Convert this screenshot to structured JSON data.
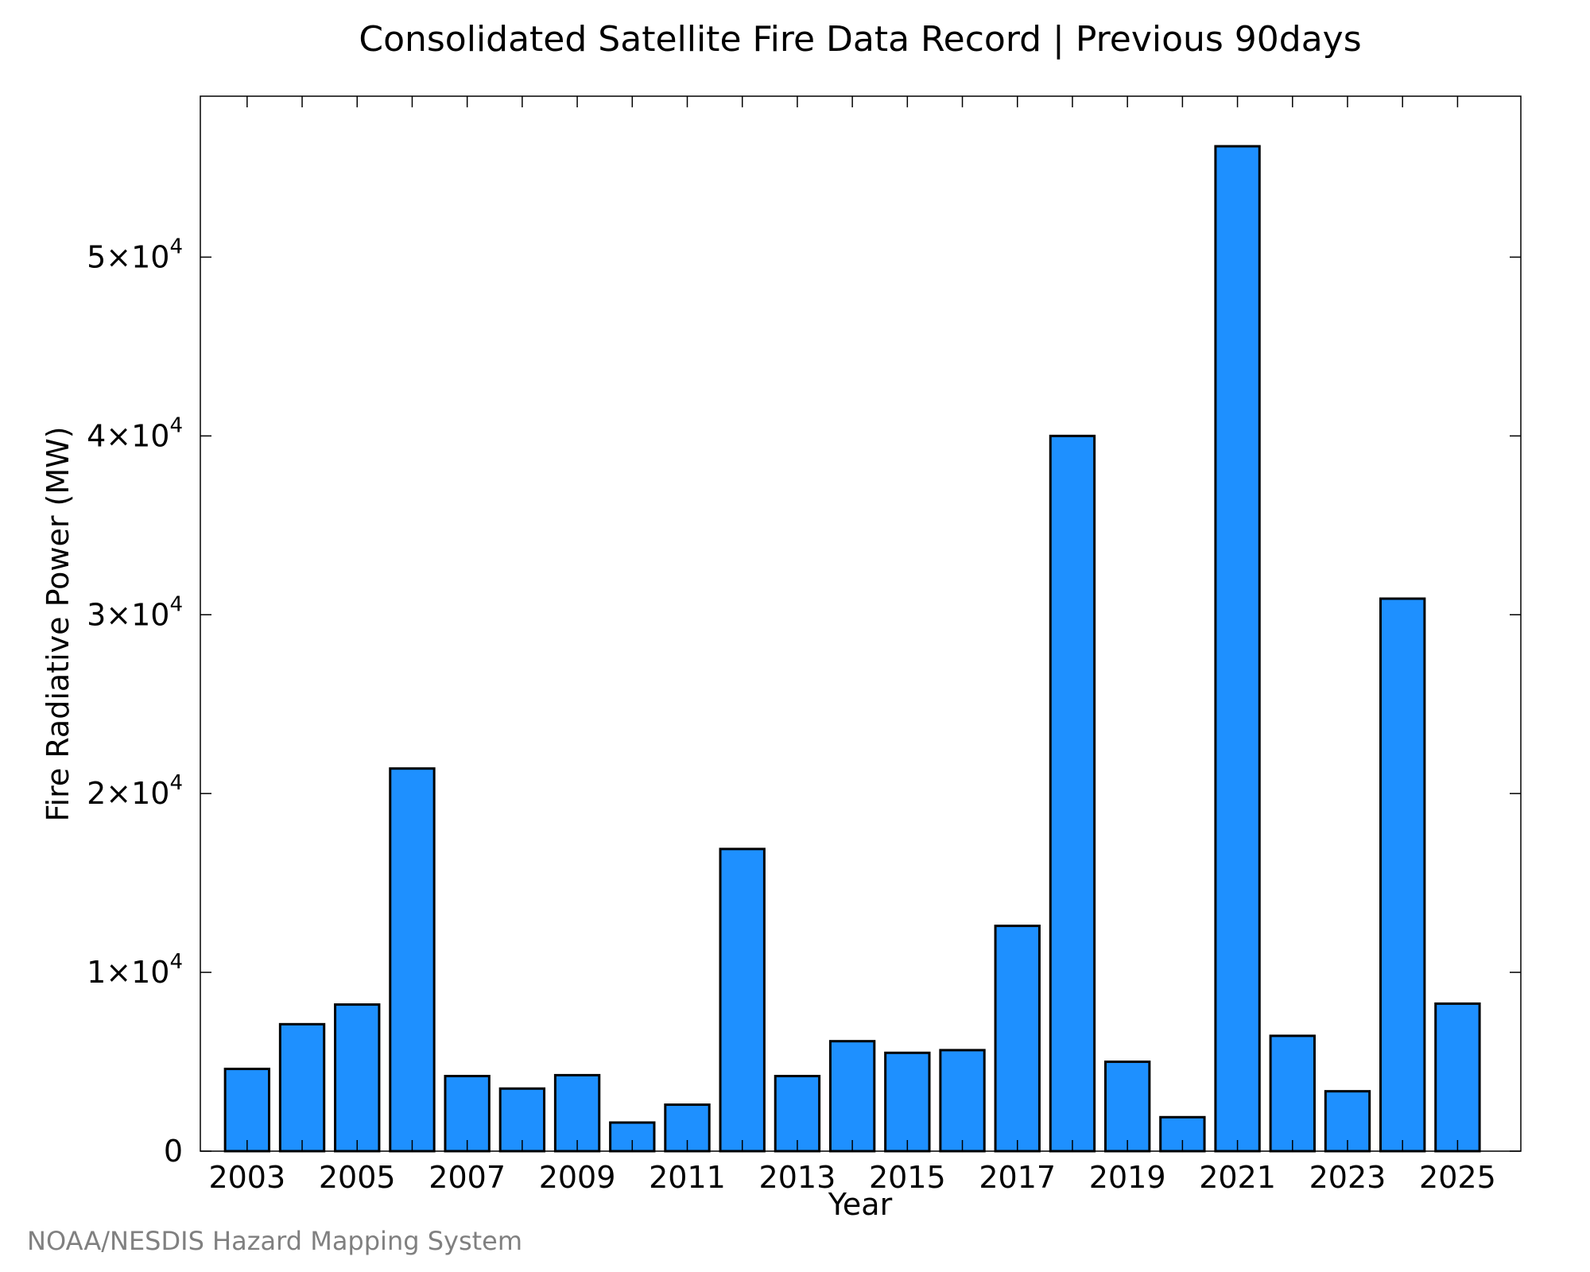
{
  "chart_data": {
    "type": "bar",
    "title": "Consolidated Satellite Fire Data Record | Previous 90days",
    "xlabel": "Year",
    "ylabel": "Fire Radiative Power (MW)",
    "categories": [
      "2003",
      "2004",
      "2005",
      "2006",
      "2007",
      "2008",
      "2009",
      "2010",
      "2011",
      "2012",
      "2013",
      "2014",
      "2015",
      "2016",
      "2017",
      "2018",
      "2019",
      "2020",
      "2021",
      "2022",
      "2023",
      "2024",
      "2025"
    ],
    "values": [
      4600,
      7100,
      8200,
      21400,
      4200,
      3500,
      4250,
      1600,
      2600,
      16900,
      4200,
      6150,
      5500,
      5650,
      12600,
      40000,
      5000,
      1900,
      56200,
      6450,
      3350,
      30900,
      8250
    ],
    "x_tick_labels": [
      "2003",
      "2005",
      "2007",
      "2009",
      "2011",
      "2013",
      "2015",
      "2017",
      "2019",
      "2021",
      "2023",
      "2025"
    ],
    "y_ticks": [
      {
        "value": 0,
        "mantissa": "0",
        "exponent": ""
      },
      {
        "value": 10000,
        "mantissa": "1×10",
        "exponent": "4"
      },
      {
        "value": 20000,
        "mantissa": "2×10",
        "exponent": "4"
      },
      {
        "value": 30000,
        "mantissa": "3×10",
        "exponent": "4"
      },
      {
        "value": 40000,
        "mantissa": "4×10",
        "exponent": "4"
      },
      {
        "value": 50000,
        "mantissa": "5×10",
        "exponent": "4"
      }
    ],
    "ylim": [
      0,
      59000
    ],
    "xlim": [
      2002.15,
      2026.15
    ],
    "bar_color": "#1E90FF",
    "grid": false,
    "legend": "none"
  },
  "credit": "NOAA/NESDIS Hazard Mapping System"
}
